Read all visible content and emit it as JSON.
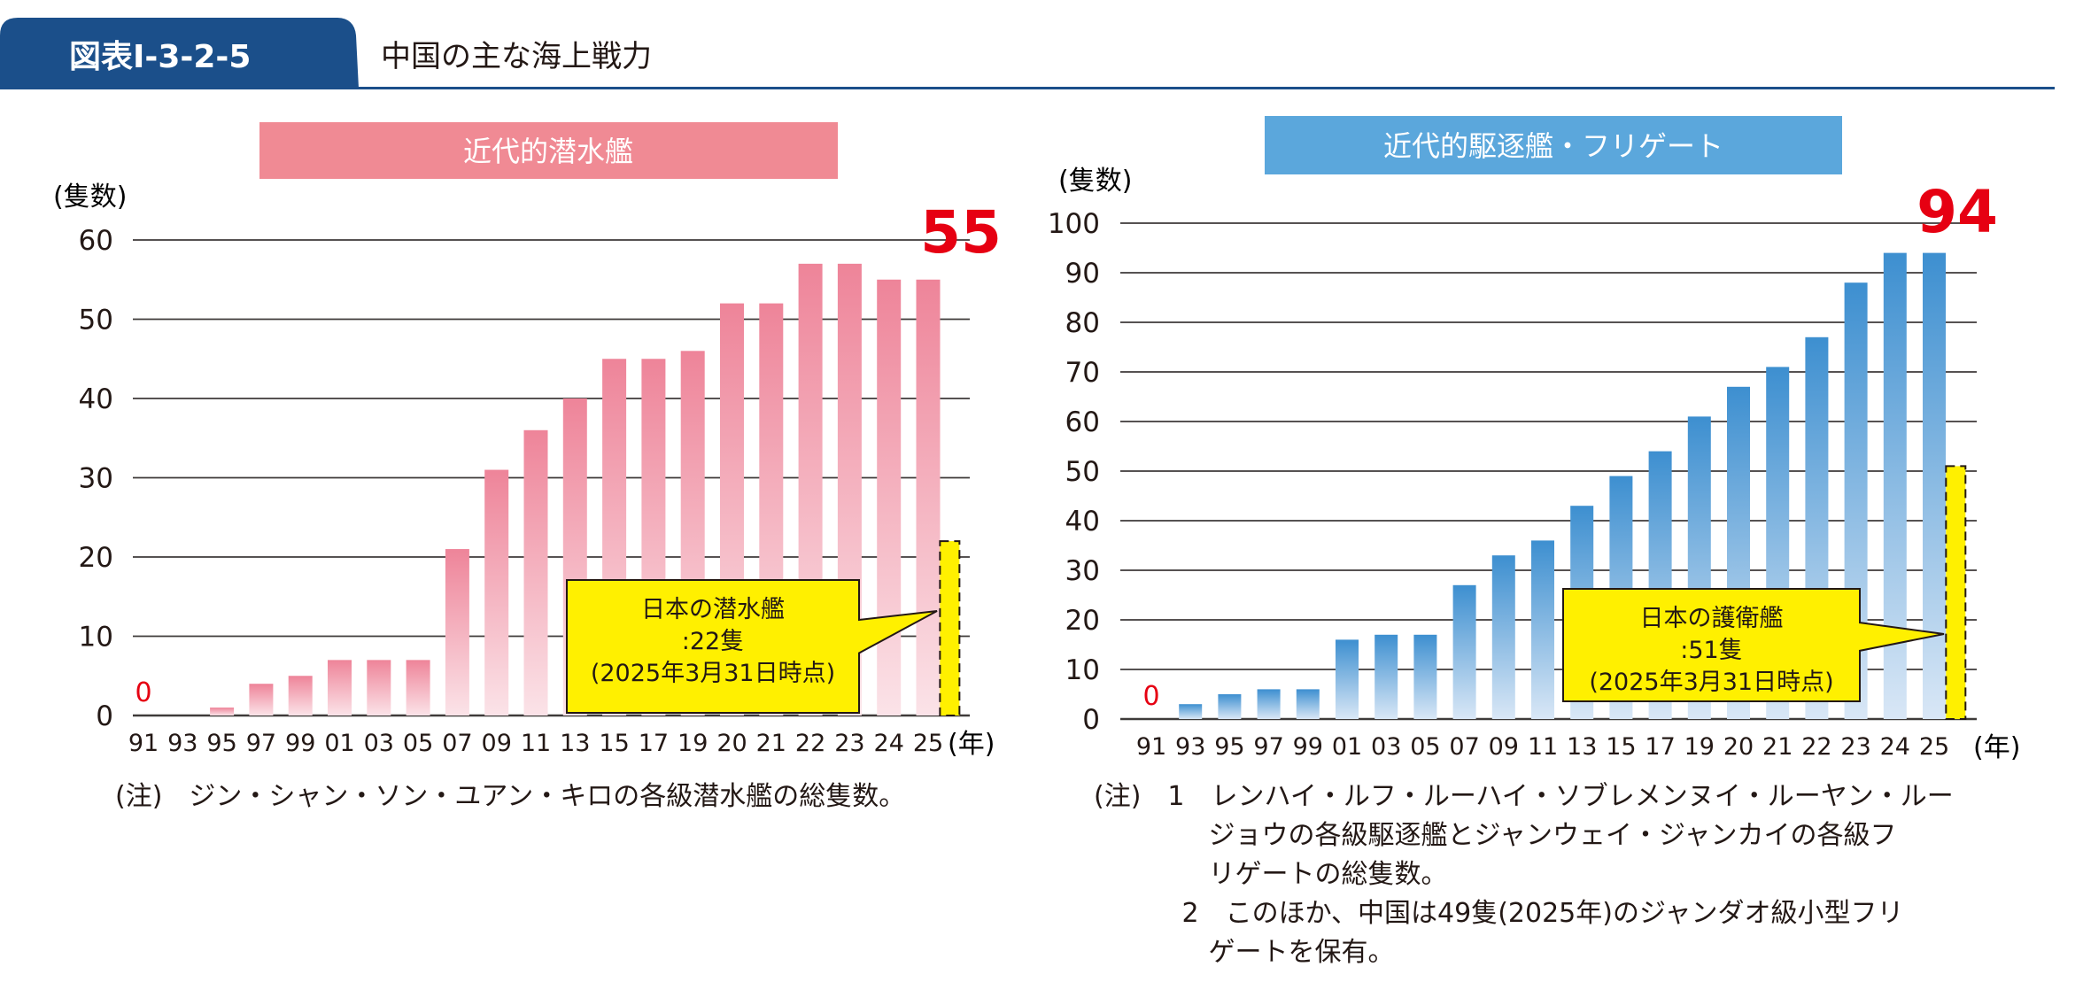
{
  "header": {
    "figure_number": "図表Ⅰ-3-2-5",
    "title": "中国の主な海上戦力",
    "tab_color": "#1b4f8a",
    "rule_color": "#1b4f8a"
  },
  "chart_data": [
    {
      "type": "bar",
      "title": "近代的潜水艦",
      "title_bg": "#f08a94",
      "ylabel": "(隻数)",
      "xlabel": "(年)",
      "ylim": [
        0,
        60
      ],
      "yticks": [
        0,
        10,
        20,
        30,
        40,
        50,
        60
      ],
      "grid": true,
      "categories": [
        "91",
        "93",
        "95",
        "97",
        "99",
        "01",
        "03",
        "05",
        "07",
        "09",
        "11",
        "13",
        "15",
        "17",
        "19",
        "20",
        "21",
        "22",
        "23",
        "24",
        "25"
      ],
      "values": [
        0,
        0,
        1,
        4,
        5,
        7,
        7,
        7,
        21,
        31,
        36,
        40,
        45,
        45,
        46,
        52,
        52,
        57,
        57,
        55,
        55
      ],
      "bar_color_top": "#ee8499",
      "bar_color_bottom": "#fbe3e8",
      "first_label": "0",
      "last_label": "55",
      "highlight_color": "#e60012",
      "japan": {
        "value": 22,
        "color": "#fff000",
        "callout": [
          "日本の潜水艦",
          ":22隻",
          "(2025年3月31日時点)"
        ]
      },
      "notes": [
        "(注)　ジン・シャン・ソン・ユアン・キロの各級潜水艦の総隻数。"
      ]
    },
    {
      "type": "bar",
      "title": "近代的駆逐艦・フリゲート",
      "title_bg": "#5ba7dc",
      "ylabel": "(隻数)",
      "xlabel": "(年)",
      "ylim": [
        0,
        100
      ],
      "yticks": [
        0,
        10,
        20,
        30,
        40,
        50,
        60,
        70,
        80,
        90,
        100
      ],
      "grid": true,
      "categories": [
        "91",
        "93",
        "95",
        "97",
        "99",
        "01",
        "03",
        "05",
        "07",
        "09",
        "11",
        "13",
        "15",
        "17",
        "19",
        "20",
        "21",
        "22",
        "23",
        "24",
        "25"
      ],
      "values": [
        0,
        3,
        5,
        6,
        6,
        16,
        17,
        17,
        27,
        33,
        36,
        43,
        49,
        54,
        61,
        67,
        71,
        77,
        88,
        94,
        94
      ],
      "bar_color_top": "#3d8fd0",
      "bar_color_bottom": "#d9e7f6",
      "first_label": "0",
      "last_label": "94",
      "highlight_color": "#e60012",
      "japan": {
        "value": 51,
        "color": "#fff000",
        "callout": [
          "日本の護衛艦",
          ":51隻",
          "(2025年3月31日時点)"
        ]
      },
      "notes": [
        "(注)　1　レンハイ・ルフ・ルーハイ・ソブレメンヌイ・ルーヤン・ルー",
        "　　　　 ジョウの各級駆逐艦とジャンウェイ・ジャンカイの各級フ",
        "　　　　 リゲートの総隻数。",
        "　　　 2　このほか、中国は49隻(2025年)のジャンダオ級小型フリ",
        "　　　　 ゲートを保有。"
      ]
    }
  ]
}
